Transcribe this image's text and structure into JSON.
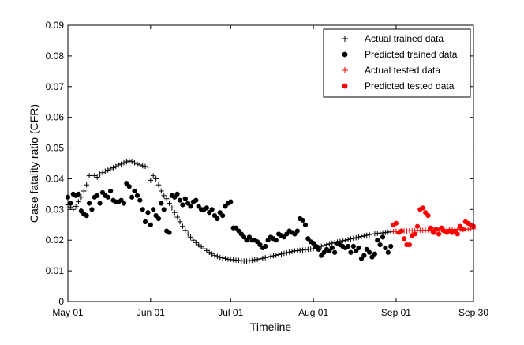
{
  "chart_data": {
    "type": "scatter",
    "title": "",
    "xlabel": "Timeline",
    "ylabel": "Case fatality ratio (CFR)",
    "x_range_days": [
      0,
      152
    ],
    "ylim": [
      0,
      0.09
    ],
    "yticks": [
      0,
      0.01,
      0.02,
      0.03,
      0.04,
      0.05,
      0.06,
      0.07,
      0.08,
      0.09
    ],
    "ytick_labels": [
      "0",
      "0.01",
      "0.02",
      "0.03",
      "0.04",
      "0.05",
      "0.06",
      "0.07",
      "0.08",
      "0.09"
    ],
    "xticks": [
      0,
      31,
      61,
      92,
      123,
      152
    ],
    "xtick_labels": [
      "May 01",
      "Jun 01",
      "Jul 01",
      "Aug 01",
      "Sep 01",
      "Sep 30"
    ],
    "grid": false,
    "legend_position": "top-right",
    "series": [
      {
        "name": "Actual trained data",
        "marker": "plus",
        "color": "#000000",
        "points": [
          [
            0,
            0.0315
          ],
          [
            1,
            0.0308
          ],
          [
            2,
            0.03
          ],
          [
            3,
            0.031
          ],
          [
            4,
            0.0325
          ],
          [
            5,
            0.034
          ],
          [
            6,
            0.036
          ],
          [
            7,
            0.038
          ],
          [
            8,
            0.041
          ],
          [
            9,
            0.0415
          ],
          [
            10,
            0.041
          ],
          [
            11,
            0.0405
          ],
          [
            12,
            0.0415
          ],
          [
            13,
            0.042
          ],
          [
            14,
            0.0425
          ],
          [
            15,
            0.0428
          ],
          [
            16,
            0.0432
          ],
          [
            17,
            0.0436
          ],
          [
            18,
            0.044
          ],
          [
            19,
            0.0445
          ],
          [
            20,
            0.0448
          ],
          [
            21,
            0.0452
          ],
          [
            22,
            0.0455
          ],
          [
            23,
            0.0458
          ],
          [
            24,
            0.0456
          ],
          [
            25,
            0.0452
          ],
          [
            26,
            0.0448
          ],
          [
            27,
            0.0445
          ],
          [
            28,
            0.0442
          ],
          [
            29,
            0.044
          ],
          [
            30,
            0.0438
          ],
          [
            31,
            0.0395
          ],
          [
            32,
            0.041
          ],
          [
            33,
            0.04
          ],
          [
            34,
            0.038
          ],
          [
            35,
            0.036
          ],
          [
            36,
            0.0345
          ],
          [
            37,
            0.0335
          ],
          [
            38,
            0.032
          ],
          [
            39,
            0.0305
          ],
          [
            40,
            0.029
          ],
          [
            41,
            0.0275
          ],
          [
            42,
            0.026
          ],
          [
            43,
            0.0245
          ],
          [
            44,
            0.0232
          ],
          [
            45,
            0.022
          ],
          [
            46,
            0.021
          ],
          [
            47,
            0.02
          ],
          [
            48,
            0.0192
          ],
          [
            49,
            0.0185
          ],
          [
            50,
            0.0178
          ],
          [
            51,
            0.0172
          ],
          [
            52,
            0.0166
          ],
          [
            53,
            0.016
          ],
          [
            54,
            0.0155
          ],
          [
            55,
            0.015
          ],
          [
            56,
            0.0147
          ],
          [
            57,
            0.0144
          ],
          [
            58,
            0.0142
          ],
          [
            59,
            0.014
          ],
          [
            60,
            0.0138
          ],
          [
            61,
            0.0137
          ],
          [
            62,
            0.0136
          ],
          [
            63,
            0.0135
          ],
          [
            64,
            0.0134
          ],
          [
            65,
            0.0133
          ],
          [
            66,
            0.0132
          ],
          [
            67,
            0.0132
          ],
          [
            68,
            0.0133
          ],
          [
            69,
            0.0134
          ],
          [
            70,
            0.0136
          ],
          [
            71,
            0.0137
          ],
          [
            72,
            0.0139
          ],
          [
            73,
            0.0141
          ],
          [
            74,
            0.0143
          ],
          [
            75,
            0.0145
          ],
          [
            76,
            0.0147
          ],
          [
            77,
            0.0149
          ],
          [
            78,
            0.0151
          ],
          [
            79,
            0.0153
          ],
          [
            80,
            0.0155
          ],
          [
            81,
            0.0157
          ],
          [
            82,
            0.0159
          ],
          [
            83,
            0.0161
          ],
          [
            84,
            0.0163
          ],
          [
            85,
            0.0165
          ],
          [
            86,
            0.0166
          ],
          [
            87,
            0.0167
          ],
          [
            88,
            0.0168
          ],
          [
            89,
            0.0169
          ],
          [
            90,
            0.017
          ],
          [
            91,
            0.0171
          ],
          [
            92,
            0.0172
          ],
          [
            93,
            0.0174
          ],
          [
            94,
            0.0177
          ],
          [
            95,
            0.018
          ],
          [
            96,
            0.0183
          ],
          [
            97,
            0.0186
          ],
          [
            98,
            0.0188
          ],
          [
            99,
            0.019
          ],
          [
            100,
            0.0192
          ],
          [
            101,
            0.0194
          ],
          [
            102,
            0.0196
          ],
          [
            103,
            0.0198
          ],
          [
            104,
            0.02
          ],
          [
            105,
            0.0202
          ],
          [
            106,
            0.0204
          ],
          [
            107,
            0.0206
          ],
          [
            108,
            0.0208
          ],
          [
            109,
            0.021
          ],
          [
            110,
            0.0212
          ],
          [
            111,
            0.0214
          ],
          [
            112,
            0.0216
          ],
          [
            113,
            0.0218
          ],
          [
            114,
            0.022
          ],
          [
            115,
            0.0221
          ],
          [
            116,
            0.0222
          ],
          [
            117,
            0.0223
          ],
          [
            118,
            0.0224
          ],
          [
            119,
            0.0225
          ],
          [
            120,
            0.0226
          ],
          [
            121,
            0.0227
          ]
        ]
      },
      {
        "name": "Predicted trained data",
        "marker": "dot",
        "color": "#000000",
        "points": [
          [
            0,
            0.034
          ],
          [
            1,
            0.032
          ],
          [
            2,
            0.035
          ],
          [
            3,
            0.0345
          ],
          [
            4,
            0.035
          ],
          [
            5,
            0.0295
          ],
          [
            6,
            0.0285
          ],
          [
            7,
            0.028
          ],
          [
            8,
            0.032
          ],
          [
            9,
            0.03
          ],
          [
            10,
            0.034
          ],
          [
            11,
            0.0345
          ],
          [
            12,
            0.032
          ],
          [
            13,
            0.0355
          ],
          [
            14,
            0.0345
          ],
          [
            15,
            0.034
          ],
          [
            16,
            0.036
          ],
          [
            17,
            0.033
          ],
          [
            18,
            0.0325
          ],
          [
            19,
            0.0325
          ],
          [
            20,
            0.033
          ],
          [
            21,
            0.032
          ],
          [
            22,
            0.0385
          ],
          [
            23,
            0.0375
          ],
          [
            24,
            0.034
          ],
          [
            25,
            0.036
          ],
          [
            26,
            0.0345
          ],
          [
            27,
            0.033
          ],
          [
            28,
            0.03
          ],
          [
            29,
            0.026
          ],
          [
            30,
            0.029
          ],
          [
            31,
            0.025
          ],
          [
            32,
            0.03
          ],
          [
            33,
            0.028
          ],
          [
            34,
            0.027
          ],
          [
            35,
            0.032
          ],
          [
            36,
            0.03
          ],
          [
            37,
            0.023
          ],
          [
            38,
            0.0225
          ],
          [
            39,
            0.0345
          ],
          [
            40,
            0.034
          ],
          [
            41,
            0.035
          ],
          [
            42,
            0.033
          ],
          [
            43,
            0.0315
          ],
          [
            44,
            0.0335
          ],
          [
            45,
            0.032
          ],
          [
            46,
            0.031
          ],
          [
            47,
            0.0325
          ],
          [
            48,
            0.033
          ],
          [
            49,
            0.031
          ],
          [
            50,
            0.03
          ],
          [
            51,
            0.03
          ],
          [
            52,
            0.0305
          ],
          [
            53,
            0.029
          ],
          [
            54,
            0.03
          ],
          [
            55,
            0.028
          ],
          [
            56,
            0.027
          ],
          [
            57,
            0.029
          ],
          [
            58,
            0.028
          ],
          [
            59,
            0.031
          ],
          [
            60,
            0.032
          ],
          [
            61,
            0.0325
          ],
          [
            62,
            0.024
          ],
          [
            63,
            0.024
          ],
          [
            64,
            0.023
          ],
          [
            65,
            0.022
          ],
          [
            66,
            0.021
          ],
          [
            67,
            0.02
          ],
          [
            68,
            0.021
          ],
          [
            69,
            0.02
          ],
          [
            70,
            0.02
          ],
          [
            71,
            0.0195
          ],
          [
            72,
            0.0185
          ],
          [
            73,
            0.0175
          ],
          [
            74,
            0.018
          ],
          [
            75,
            0.02
          ],
          [
            76,
            0.021
          ],
          [
            77,
            0.0205
          ],
          [
            78,
            0.02
          ],
          [
            79,
            0.022
          ],
          [
            80,
            0.0215
          ],
          [
            81,
            0.021
          ],
          [
            82,
            0.022
          ],
          [
            83,
            0.023
          ],
          [
            84,
            0.0225
          ],
          [
            85,
            0.022
          ],
          [
            86,
            0.023
          ],
          [
            87,
            0.027
          ],
          [
            88,
            0.0265
          ],
          [
            89,
            0.025
          ],
          [
            90,
            0.0205
          ],
          [
            91,
            0.0195
          ],
          [
            92,
            0.019
          ],
          [
            93,
            0.018
          ],
          [
            94,
            0.017
          ],
          [
            95,
            0.015
          ],
          [
            96,
            0.016
          ],
          [
            97,
            0.017
          ],
          [
            98,
            0.0165
          ],
          [
            99,
            0.0175
          ],
          [
            100,
            0.016
          ],
          [
            101,
            0.019
          ],
          [
            102,
            0.0185
          ],
          [
            103,
            0.018
          ],
          [
            104,
            0.0175
          ],
          [
            105,
            0.018
          ],
          [
            106,
            0.016
          ],
          [
            107,
            0.018
          ],
          [
            108,
            0.0165
          ],
          [
            109,
            0.0175
          ],
          [
            110,
            0.014
          ],
          [
            111,
            0.015
          ],
          [
            112,
            0.017
          ],
          [
            113,
            0.016
          ],
          [
            114,
            0.0145
          ],
          [
            115,
            0.0155
          ],
          [
            116,
            0.02
          ],
          [
            117,
            0.0185
          ],
          [
            118,
            0.021
          ],
          [
            119,
            0.0175
          ],
          [
            120,
            0.016
          ],
          [
            121,
            0.018
          ]
        ]
      },
      {
        "name": "Actual tested data",
        "marker": "plus",
        "color": "#ff0000",
        "points": [
          [
            122,
            0.0228
          ],
          [
            123,
            0.0229
          ],
          [
            124,
            0.0229
          ],
          [
            125,
            0.023
          ],
          [
            126,
            0.023
          ],
          [
            127,
            0.023
          ],
          [
            128,
            0.0231
          ],
          [
            129,
            0.0231
          ],
          [
            130,
            0.0231
          ],
          [
            131,
            0.0232
          ],
          [
            132,
            0.0232
          ],
          [
            133,
            0.0232
          ],
          [
            134,
            0.0232
          ],
          [
            135,
            0.0233
          ],
          [
            136,
            0.0233
          ],
          [
            137,
            0.0233
          ],
          [
            138,
            0.0233
          ],
          [
            139,
            0.0234
          ],
          [
            140,
            0.0234
          ],
          [
            141,
            0.0234
          ],
          [
            142,
            0.0234
          ],
          [
            143,
            0.0235
          ],
          [
            144,
            0.0235
          ],
          [
            145,
            0.0235
          ],
          [
            146,
            0.0235
          ],
          [
            147,
            0.0236
          ],
          [
            148,
            0.0236
          ],
          [
            149,
            0.0236
          ],
          [
            150,
            0.0236
          ],
          [
            151,
            0.0237
          ],
          [
            152,
            0.0237
          ]
        ]
      },
      {
        "name": "Predicted tested data",
        "marker": "dot",
        "color": "#ff0000",
        "points": [
          [
            122,
            0.025
          ],
          [
            123,
            0.0255
          ],
          [
            124,
            0.0225
          ],
          [
            125,
            0.023
          ],
          [
            126,
            0.0205
          ],
          [
            127,
            0.0185
          ],
          [
            128,
            0.0185
          ],
          [
            129,
            0.0215
          ],
          [
            130,
            0.022
          ],
          [
            131,
            0.0245
          ],
          [
            132,
            0.03
          ],
          [
            133,
            0.0305
          ],
          [
            134,
            0.029
          ],
          [
            135,
            0.028
          ],
          [
            136,
            0.024
          ],
          [
            137,
            0.0225
          ],
          [
            138,
            0.0235
          ],
          [
            139,
            0.022
          ],
          [
            140,
            0.024
          ],
          [
            141,
            0.023
          ],
          [
            142,
            0.0225
          ],
          [
            143,
            0.023
          ],
          [
            144,
            0.0225
          ],
          [
            145,
            0.023
          ],
          [
            146,
            0.022
          ],
          [
            147,
            0.0245
          ],
          [
            148,
            0.0235
          ],
          [
            149,
            0.026
          ],
          [
            150,
            0.0255
          ],
          [
            151,
            0.025
          ],
          [
            152,
            0.0245
          ]
        ]
      }
    ]
  }
}
